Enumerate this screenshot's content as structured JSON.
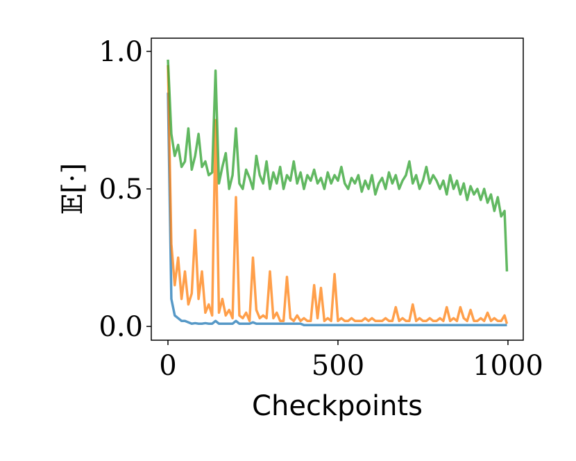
{
  "chart_data": {
    "type": "line",
    "xlabel": "Checkpoints",
    "ylabel": "𝔼[·]",
    "xlim": [
      -49,
      1045
    ],
    "ylim": [
      -0.05,
      1.048
    ],
    "xticks": [
      0,
      500,
      1000
    ],
    "yticks": [
      {
        "value": 0,
        "label": "0.0"
      },
      {
        "value": 0.5,
        "label": "0.5"
      },
      {
        "value": 1,
        "label": "1.0"
      }
    ],
    "x": [
      0,
      10,
      20,
      30,
      40,
      50,
      60,
      70,
      80,
      90,
      100,
      110,
      120,
      130,
      140,
      150,
      160,
      170,
      180,
      190,
      200,
      210,
      220,
      230,
      240,
      250,
      260,
      270,
      280,
      290,
      300,
      310,
      320,
      330,
      340,
      350,
      360,
      370,
      380,
      390,
      400,
      410,
      420,
      430,
      440,
      450,
      460,
      470,
      480,
      490,
      500,
      510,
      520,
      530,
      540,
      550,
      560,
      570,
      580,
      590,
      600,
      610,
      620,
      630,
      640,
      650,
      660,
      670,
      680,
      690,
      700,
      710,
      720,
      730,
      740,
      750,
      760,
      770,
      780,
      790,
      800,
      810,
      820,
      830,
      840,
      850,
      860,
      870,
      880,
      890,
      900,
      910,
      920,
      930,
      940,
      950,
      960,
      970,
      980,
      990,
      997
    ],
    "series": [
      {
        "color": "#1f77b4",
        "values": [
          0.85,
          0.1,
          0.04,
          0.03,
          0.02,
          0.02,
          0.015,
          0.01,
          0.012,
          0.01,
          0.01,
          0.012,
          0.01,
          0.01,
          0.02,
          0.01,
          0.01,
          0.01,
          0.01,
          0.01,
          0.02,
          0.01,
          0.01,
          0.01,
          0.01,
          0.015,
          0.01,
          0.01,
          0.01,
          0.01,
          0.01,
          0.01,
          0.01,
          0.01,
          0.01,
          0.01,
          0.01,
          0.01,
          0.01,
          0.01,
          0.005,
          0.005,
          0.005,
          0.005,
          0.005,
          0.005,
          0.005,
          0.005,
          0.005,
          0.005,
          0.005,
          0.005,
          0.005,
          0.005,
          0.005,
          0.005,
          0.005,
          0.005,
          0.005,
          0.005,
          0.005,
          0.005,
          0.005,
          0.005,
          0.005,
          0.005,
          0.005,
          0.005,
          0.005,
          0.005,
          0.005,
          0.005,
          0.005,
          0.005,
          0.005,
          0.005,
          0.005,
          0.005,
          0.005,
          0.005,
          0.005,
          0.005,
          0.005,
          0.005,
          0.005,
          0.005,
          0.005,
          0.005,
          0.005,
          0.005,
          0.005,
          0.005,
          0.005,
          0.005,
          0.005,
          0.005,
          0.005,
          0.005,
          0.005,
          0.005,
          0.005
        ]
      },
      {
        "color": "#ff7f0e",
        "values": [
          0.95,
          0.3,
          0.15,
          0.25,
          0.1,
          0.2,
          0.08,
          0.12,
          0.35,
          0.1,
          0.2,
          0.05,
          0.08,
          0.04,
          0.75,
          0.05,
          0.1,
          0.04,
          0.06,
          0.03,
          0.47,
          0.04,
          0.03,
          0.05,
          0.02,
          0.25,
          0.06,
          0.03,
          0.04,
          0.03,
          0.2,
          0.03,
          0.05,
          0.02,
          0.02,
          0.18,
          0.03,
          0.02,
          0.04,
          0.02,
          0.03,
          0.02,
          0.02,
          0.15,
          0.03,
          0.14,
          0.02,
          0.03,
          0.02,
          0.19,
          0.02,
          0.03,
          0.02,
          0.02,
          0.03,
          0.02,
          0.02,
          0.02,
          0.03,
          0.02,
          0.03,
          0.02,
          0.02,
          0.02,
          0.03,
          0.02,
          0.02,
          0.07,
          0.02,
          0.03,
          0.02,
          0.02,
          0.08,
          0.02,
          0.03,
          0.02,
          0.02,
          0.03,
          0.02,
          0.02,
          0.03,
          0.02,
          0.07,
          0.02,
          0.03,
          0.02,
          0.07,
          0.03,
          0.02,
          0.06,
          0.02,
          0.02,
          0.03,
          0.02,
          0.05,
          0.02,
          0.03,
          0.02,
          0.02,
          0.04,
          0.01
        ]
      },
      {
        "color": "#2ca02c",
        "values": [
          0.97,
          0.7,
          0.62,
          0.66,
          0.58,
          0.6,
          0.72,
          0.57,
          0.62,
          0.7,
          0.58,
          0.6,
          0.55,
          0.56,
          0.93,
          0.52,
          0.58,
          0.63,
          0.5,
          0.55,
          0.72,
          0.52,
          0.5,
          0.57,
          0.54,
          0.5,
          0.62,
          0.55,
          0.52,
          0.6,
          0.5,
          0.56,
          0.52,
          0.58,
          0.5,
          0.55,
          0.53,
          0.6,
          0.52,
          0.56,
          0.5,
          0.55,
          0.53,
          0.57,
          0.52,
          0.54,
          0.5,
          0.56,
          0.52,
          0.55,
          0.53,
          0.58,
          0.52,
          0.5,
          0.54,
          0.52,
          0.55,
          0.49,
          0.53,
          0.5,
          0.55,
          0.48,
          0.52,
          0.54,
          0.5,
          0.56,
          0.52,
          0.55,
          0.5,
          0.53,
          0.55,
          0.6,
          0.52,
          0.55,
          0.5,
          0.53,
          0.58,
          0.52,
          0.55,
          0.53,
          0.5,
          0.53,
          0.48,
          0.55,
          0.5,
          0.53,
          0.48,
          0.52,
          0.46,
          0.51,
          0.48,
          0.5,
          0.46,
          0.5,
          0.45,
          0.48,
          0.42,
          0.47,
          0.4,
          0.42,
          0.2
        ]
      }
    ]
  }
}
